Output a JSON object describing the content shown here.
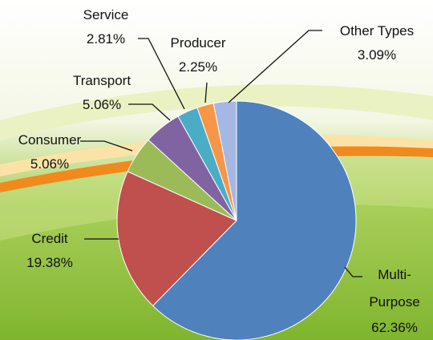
{
  "chart_data": {
    "type": "pie",
    "categories": [
      "Multi-Purpose",
      "Credit",
      "Consumer",
      "Transport",
      "Service",
      "Producer",
      "Other Types"
    ],
    "values": [
      62.36,
      19.38,
      5.06,
      5.06,
      2.81,
      2.25,
      3.09
    ],
    "value_labels": [
      "62.36%",
      "19.38%",
      "5.06%",
      "5.06%",
      "2.81%",
      "2.25%",
      "3.09%"
    ],
    "colors": [
      "#4f81bd",
      "#c0504d",
      "#9bbb59",
      "#8064a2",
      "#4bacc6",
      "#f79646",
      "#a5b8e3"
    ]
  }
}
